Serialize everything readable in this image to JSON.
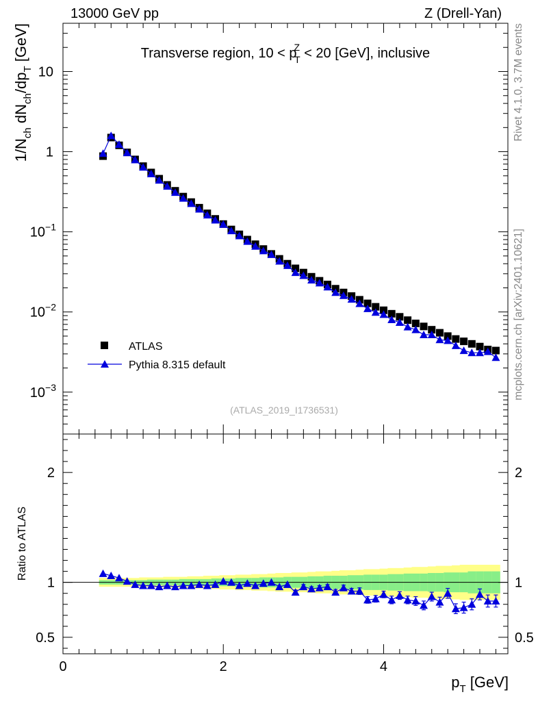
{
  "header": {
    "left": "13000 GeV pp",
    "right": "Z (Drell-Yan)"
  },
  "side_text": {
    "rivet": "Rivet 4.1.0,  3.7M events",
    "mcplots": "mcplots.cern.ch [arXiv:2401.10621]"
  },
  "colors": {
    "data": "#000000",
    "mc": "#0000dd",
    "band_outer": "#ffff88",
    "band_inner": "#88ee88"
  },
  "chart_data": [
    {
      "type": "scatter",
      "title": "Transverse region, 10 < p_T^Z < 20 [GeV], inclusive",
      "title_parts": {
        "a": "Transverse region, 10 < p",
        "sub": "T",
        "sup": "Z",
        "b": " < 20 [GeV], inclusive"
      },
      "ylabel": "1/N_ch dN_ch/dp_T [GeV]",
      "ylabel_parts": {
        "a": "1/N",
        "s1": "ch",
        "b": " dN",
        "s2": "ch",
        "c": "/dp",
        "s3": "T",
        "d": " [GeV]"
      },
      "yscale": "log",
      "ylim": [
        0.0003,
        40
      ],
      "xlim": [
        0,
        5.55
      ],
      "y_ticks": [
        {
          "value": 10,
          "base": "10",
          "exp": ""
        },
        {
          "value": 1,
          "base": "1",
          "exp": ""
        },
        {
          "value": 0.1,
          "base": "10",
          "exp": "−1"
        },
        {
          "value": 0.01,
          "base": "10",
          "exp": "−2"
        },
        {
          "value": 0.001,
          "base": "10",
          "exp": "−3"
        }
      ],
      "legend": {
        "position": "lower-left",
        "entries": [
          "ATLAS",
          "Pythia 8.315 default"
        ]
      },
      "watermark": "(ATLAS_2019_I1736531)",
      "x": [
        0.5,
        0.6,
        0.7,
        0.8,
        0.9,
        1.0,
        1.1,
        1.2,
        1.3,
        1.4,
        1.5,
        1.6,
        1.7,
        1.8,
        1.9,
        2.0,
        2.1,
        2.2,
        2.3,
        2.4,
        2.5,
        2.6,
        2.7,
        2.8,
        2.9,
        3.0,
        3.1,
        3.2,
        3.3,
        3.4,
        3.5,
        3.6,
        3.7,
        3.8,
        3.9,
        4.0,
        4.1,
        4.2,
        4.3,
        4.4,
        4.5,
        4.6,
        4.7,
        4.8,
        4.9,
        5.0,
        5.1,
        5.2,
        5.3,
        5.4
      ],
      "series": [
        {
          "name": "ATLAS",
          "marker": "square",
          "values": [
            0.88,
            1.5,
            1.2,
            0.98,
            0.8,
            0.66,
            0.55,
            0.46,
            0.385,
            0.325,
            0.275,
            0.235,
            0.2,
            0.17,
            0.145,
            0.125,
            0.107,
            0.093,
            0.08,
            0.07,
            0.061,
            0.053,
            0.046,
            0.04,
            0.035,
            0.031,
            0.0275,
            0.0245,
            0.022,
            0.0195,
            0.0175,
            0.0158,
            0.0142,
            0.0128,
            0.0116,
            0.0105,
            0.0095,
            0.0087,
            0.0079,
            0.0072,
            0.0066,
            0.006,
            0.0055,
            0.005,
            0.0046,
            0.0043,
            0.004,
            0.0037,
            0.0034,
            0.0033
          ]
        },
        {
          "name": "Pythia 8.315 default",
          "marker": "triangle",
          "line": true,
          "values": [
            0.95,
            1.58,
            1.23,
            0.97,
            0.79,
            0.64,
            0.53,
            0.44,
            0.37,
            0.31,
            0.262,
            0.225,
            0.192,
            0.162,
            0.14,
            0.124,
            0.103,
            0.089,
            0.076,
            0.066,
            0.058,
            0.052,
            0.043,
            0.038,
            0.031,
            0.0285,
            0.025,
            0.023,
            0.0205,
            0.0175,
            0.016,
            0.0144,
            0.0127,
            0.011,
            0.0099,
            0.0093,
            0.008,
            0.0074,
            0.0065,
            0.006,
            0.0052,
            0.0052,
            0.0045,
            0.0044,
            0.0038,
            0.0033,
            0.0031,
            0.0031,
            0.0032,
            0.0027
          ]
        }
      ]
    },
    {
      "type": "scatter",
      "ylabel": "Ratio to ATLAS",
      "xlabel": "p_T [GeV]",
      "xlabel_parts": {
        "a": "p",
        "sub": "T",
        "b": " [GeV]"
      },
      "ylim": [
        0.35,
        2.35
      ],
      "xlim": [
        0,
        5.55
      ],
      "y_ticks": [
        {
          "value": 2,
          "label": "2"
        },
        {
          "value": 1,
          "label": "1"
        },
        {
          "value": 0.5,
          "label": "0.5"
        }
      ],
      "x_ticks": [
        {
          "value": 0,
          "label": "0"
        },
        {
          "value": 2,
          "label": "2"
        },
        {
          "value": 4,
          "label": "4"
        }
      ],
      "reference": 1,
      "x": [
        0.5,
        0.6,
        0.7,
        0.8,
        0.9,
        1.0,
        1.1,
        1.2,
        1.3,
        1.4,
        1.5,
        1.6,
        1.7,
        1.8,
        1.9,
        2.0,
        2.1,
        2.2,
        2.3,
        2.4,
        2.5,
        2.6,
        2.7,
        2.8,
        2.9,
        3.0,
        3.1,
        3.2,
        3.3,
        3.4,
        3.5,
        3.6,
        3.7,
        3.8,
        3.9,
        4.0,
        4.1,
        4.2,
        4.3,
        4.4,
        4.5,
        4.6,
        4.7,
        4.8,
        4.9,
        5.0,
        5.1,
        5.2,
        5.3,
        5.4
      ],
      "band_outer_halfwidth": [
        0.04,
        0.04,
        0.04,
        0.04,
        0.04,
        0.045,
        0.045,
        0.045,
        0.05,
        0.05,
        0.05,
        0.055,
        0.055,
        0.06,
        0.06,
        0.065,
        0.065,
        0.07,
        0.07,
        0.075,
        0.075,
        0.08,
        0.085,
        0.085,
        0.09,
        0.09,
        0.095,
        0.1,
        0.1,
        0.105,
        0.11,
        0.11,
        0.115,
        0.12,
        0.12,
        0.125,
        0.13,
        0.13,
        0.135,
        0.14,
        0.14,
        0.145,
        0.15,
        0.15,
        0.155,
        0.16,
        0.16,
        0.16,
        0.16,
        0.16
      ],
      "band_inner_halfwidth": [
        0.02,
        0.02,
        0.02,
        0.02,
        0.02,
        0.02,
        0.025,
        0.025,
        0.025,
        0.025,
        0.03,
        0.03,
        0.03,
        0.03,
        0.035,
        0.035,
        0.035,
        0.04,
        0.04,
        0.04,
        0.045,
        0.045,
        0.045,
        0.05,
        0.05,
        0.05,
        0.055,
        0.055,
        0.06,
        0.06,
        0.06,
        0.065,
        0.065,
        0.07,
        0.07,
        0.07,
        0.075,
        0.075,
        0.08,
        0.08,
        0.08,
        0.085,
        0.085,
        0.09,
        0.09,
        0.09,
        0.1,
        0.1,
        0.1,
        0.1
      ],
      "series": [
        {
          "name": "Pythia 8.315 default",
          "values": [
            1.08,
            1.06,
            1.04,
            1.01,
            0.98,
            0.97,
            0.97,
            0.96,
            0.97,
            0.96,
            0.97,
            0.97,
            0.98,
            0.97,
            0.98,
            1.01,
            1.0,
            0.97,
            0.99,
            0.97,
            0.99,
            1.0,
            0.96,
            0.98,
            0.91,
            0.96,
            0.94,
            0.95,
            0.96,
            0.91,
            0.95,
            0.92,
            0.92,
            0.84,
            0.85,
            0.89,
            0.84,
            0.88,
            0.84,
            0.83,
            0.79,
            0.87,
            0.82,
            0.9,
            0.76,
            0.77,
            0.8,
            0.89,
            0.83,
            0.83
          ],
          "errors": [
            0.01,
            0.01,
            0.01,
            0.01,
            0.01,
            0.01,
            0.01,
            0.01,
            0.01,
            0.01,
            0.01,
            0.01,
            0.01,
            0.01,
            0.01,
            0.01,
            0.01,
            0.01,
            0.01,
            0.01,
            0.015,
            0.015,
            0.015,
            0.015,
            0.02,
            0.02,
            0.02,
            0.02,
            0.02,
            0.025,
            0.025,
            0.025,
            0.03,
            0.03,
            0.03,
            0.03,
            0.035,
            0.035,
            0.035,
            0.04,
            0.04,
            0.04,
            0.045,
            0.045,
            0.045,
            0.05,
            0.05,
            0.05,
            0.055,
            0.055
          ]
        }
      ]
    }
  ]
}
